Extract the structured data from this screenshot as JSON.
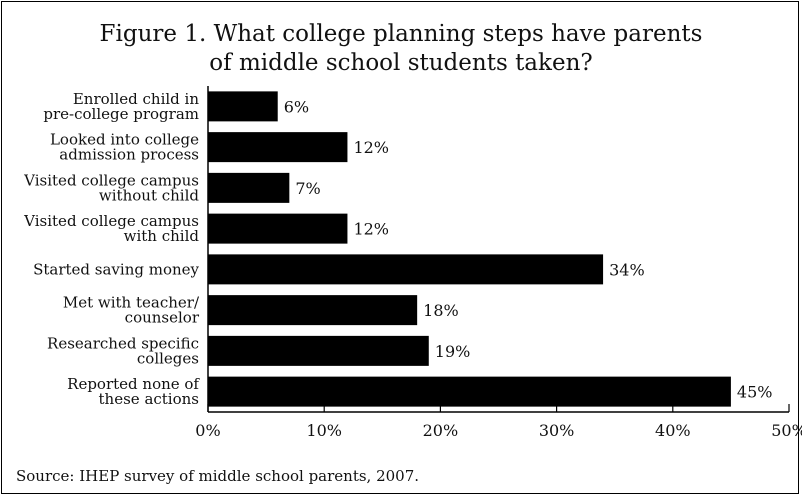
{
  "title": "Figure 1.  What college planning steps have parents\nof middle school students taken?",
  "source": "Source:  IHEP survey of middle school parents, 2007.",
  "chart_data": {
    "type": "bar",
    "orientation": "horizontal",
    "categories": [
      [
        "Enrolled child in",
        "pre-college program"
      ],
      [
        "Looked into college",
        "admission process"
      ],
      [
        "Visited college campus",
        "without child"
      ],
      [
        "Visited college campus",
        "with child"
      ],
      [
        "Started saving money"
      ],
      [
        "Met with teacher/",
        "counselor"
      ],
      [
        "Researched specific",
        "colleges"
      ],
      [
        "Reported none of",
        "these actions"
      ]
    ],
    "values": [
      6,
      12,
      7,
      12,
      34,
      18,
      19,
      45
    ],
    "value_labels": [
      "6%",
      "12%",
      "7%",
      "12%",
      "34%",
      "18%",
      "19%",
      "45%"
    ],
    "xlim": [
      0,
      50
    ],
    "xticks": [
      0,
      10,
      20,
      30,
      40,
      50
    ],
    "xtick_labels": [
      "0%",
      "10%",
      "20%",
      "30%",
      "40%",
      "50%"
    ],
    "bar_color": "#000000",
    "grid": false
  }
}
